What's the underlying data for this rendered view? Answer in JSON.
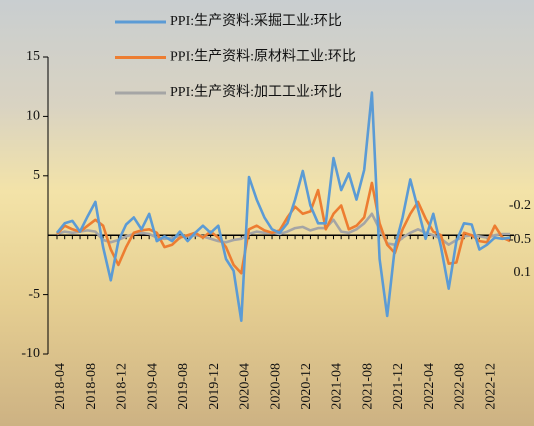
{
  "chart_data": {
    "type": "line",
    "categories": [
      "2018-04",
      null,
      null,
      null,
      "2018-08",
      null,
      null,
      null,
      "2018-12",
      null,
      null,
      null,
      "2019-04",
      null,
      null,
      null,
      "2019-08",
      null,
      null,
      null,
      "2019-12",
      null,
      null,
      null,
      "2020-04",
      null,
      null,
      null,
      "2020-08",
      null,
      null,
      null,
      "2020-12",
      null,
      null,
      null,
      "2021-04",
      null,
      null,
      null,
      "2021-08",
      null,
      null,
      null,
      "2021-12",
      null,
      null,
      null,
      "2022-04",
      null,
      null,
      null,
      "2022-08",
      null,
      null,
      null,
      "2022-12",
      null,
      null,
      null
    ],
    "series": [
      {
        "name": "PPI:生产资料:采掘工业:环比",
        "color": "#5b9bd5",
        "values": [
          0.2,
          1.0,
          1.2,
          0.3,
          1.6,
          2.8,
          -1.0,
          -3.8,
          -0.5,
          0.9,
          1.5,
          0.5,
          1.8,
          -0.5,
          -0.1,
          -0.5,
          0.3,
          -0.5,
          0.2,
          0.8,
          0.2,
          0.8,
          -2.0,
          -3.0,
          -7.2,
          4.9,
          3.0,
          1.5,
          0.5,
          0.2,
          1.0,
          3.0,
          5.4,
          2.5,
          1.0,
          1.0,
          6.5,
          3.8,
          5.2,
          3.0,
          5.5,
          12.0,
          -2.0,
          -6.8,
          -1.0,
          1.5,
          4.7,
          2.2,
          -0.3,
          1.8,
          -1.0,
          -4.5,
          -0.5,
          1.0,
          0.9,
          -1.2,
          -0.8,
          -0.2,
          -0.3,
          -0.2
        ]
      },
      {
        "name": "PPI:生产资料:原材料工业:环比",
        "color": "#ed7d31",
        "values": [
          0.1,
          0.8,
          0.5,
          0.3,
          0.8,
          1.3,
          0.8,
          -1.2,
          -2.5,
          -1.0,
          0.2,
          0.4,
          0.5,
          0.2,
          -1.0,
          -0.8,
          -0.2,
          0.0,
          0.2,
          -0.2,
          0.3,
          -0.2,
          -1.0,
          -2.5,
          -3.2,
          0.5,
          0.8,
          0.4,
          0.2,
          0.4,
          1.5,
          2.4,
          1.8,
          2.0,
          3.8,
          0.5,
          1.8,
          2.5,
          0.5,
          0.8,
          1.5,
          4.4,
          1.0,
          -0.8,
          -1.5,
          0.5,
          1.8,
          2.8,
          1.4,
          0.3,
          0.0,
          -2.4,
          -2.3,
          0.2,
          0.0,
          -0.5,
          -0.6,
          0.8,
          -0.2,
          -0.5
        ]
      },
      {
        "name": "PPI:生产资料:加工工业:环比",
        "color": "#a5a5a5",
        "values": [
          0.1,
          0.3,
          0.2,
          0.3,
          0.4,
          0.3,
          -0.4,
          -0.6,
          -0.4,
          -0.1,
          0.1,
          0.2,
          0.1,
          -0.2,
          -0.3,
          -0.2,
          -0.1,
          -0.1,
          0.0,
          -0.1,
          -0.3,
          -0.5,
          -0.6,
          -0.4,
          -0.3,
          0.1,
          0.3,
          0.2,
          0.2,
          0.1,
          0.3,
          0.6,
          0.7,
          0.4,
          0.6,
          0.6,
          1.3,
          0.3,
          0.2,
          0.5,
          1.0,
          1.8,
          0.5,
          -0.7,
          -0.8,
          -0.2,
          0.2,
          0.5,
          0.2,
          0.0,
          -0.3,
          -0.8,
          -0.4,
          -0.1,
          0.0,
          -0.1,
          -0.2,
          0.0,
          0.1,
          0.1
        ]
      }
    ],
    "annotations": [
      "-0.2",
      "-0.5",
      "0.1"
    ],
    "ylim": [
      -10,
      15
    ],
    "yticks": [
      15,
      10,
      5,
      -5,
      -10
    ]
  }
}
